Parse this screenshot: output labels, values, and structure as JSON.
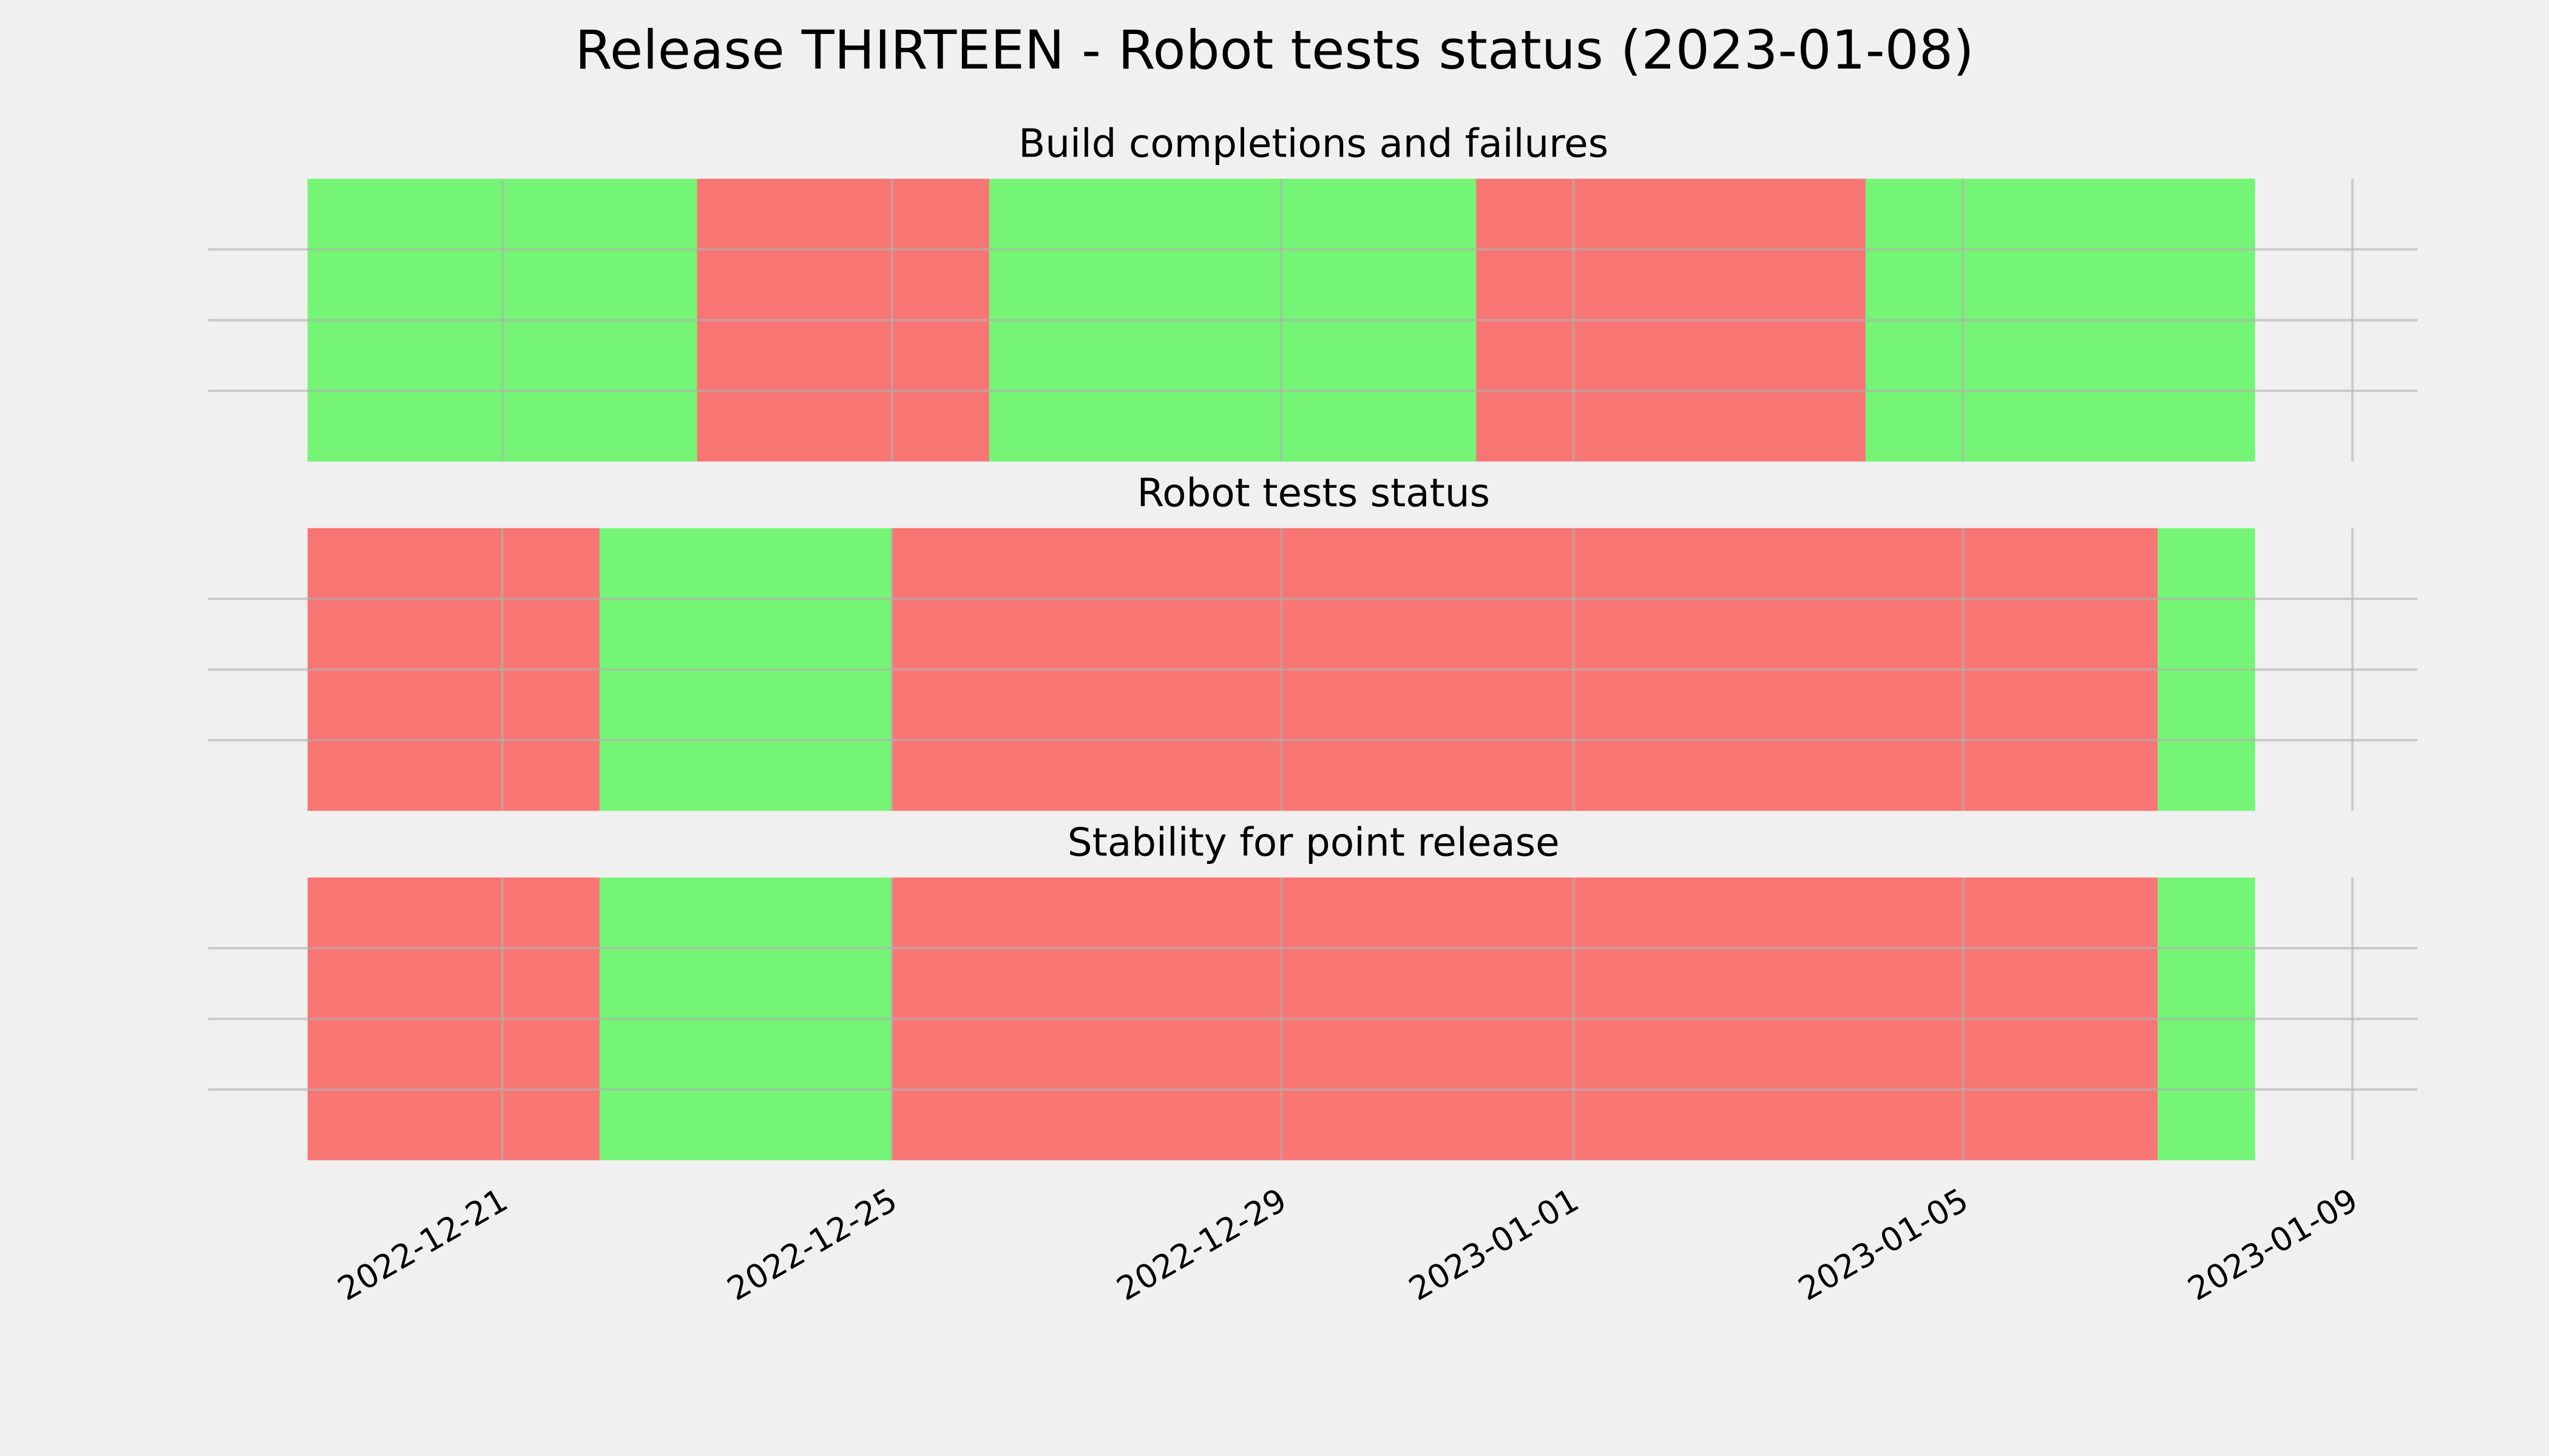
{
  "title": "Release THIRTEEN - Robot tests status (2023-01-08)",
  "chart_data": [
    {
      "type": "timeline",
      "title": "Build completions and failures",
      "x": [
        "2022-12-19",
        "2022-12-23",
        "2022-12-26",
        "2022-12-31",
        "2023-01-04",
        "2023-01-08"
      ],
      "colors": [
        "#75f575",
        "#f77674",
        "#75f575",
        "#f77674",
        "#75f575"
      ],
      "xlim": [
        "2022-12-18",
        "2023-01-10"
      ],
      "xticks": [
        "2022-12-21",
        "2022-12-25",
        "2022-12-29",
        "2023-01-01",
        "2023-01-05",
        "2023-01-09"
      ],
      "ylim": [
        0,
        1
      ],
      "yticks": [
        0.25,
        0.5,
        0.75
      ],
      "grid": true
    },
    {
      "type": "timeline",
      "title": "Robot tests status",
      "x": [
        "2022-12-19",
        "2022-12-22",
        "2022-12-25",
        "2023-01-07",
        "2023-01-08"
      ],
      "colors": [
        "#f77674",
        "#75f575",
        "#f77674",
        "#75f575"
      ],
      "xlim": [
        "2022-12-18",
        "2023-01-10"
      ],
      "xticks": [
        "2022-12-21",
        "2022-12-25",
        "2022-12-29",
        "2023-01-01",
        "2023-01-05",
        "2023-01-09"
      ],
      "ylim": [
        0,
        1
      ],
      "yticks": [
        0.25,
        0.5,
        0.75
      ],
      "grid": true
    },
    {
      "type": "timeline",
      "title": "Stability for point release",
      "x": [
        "2022-12-19",
        "2022-12-22",
        "2022-12-25",
        "2023-01-07",
        "2023-01-08"
      ],
      "colors": [
        "#f77674",
        "#75f575",
        "#f77674",
        "#75f575"
      ],
      "xlim": [
        "2022-12-18",
        "2023-01-10"
      ],
      "xticks": [
        "2022-12-21",
        "2022-12-25",
        "2022-12-29",
        "2023-01-01",
        "2023-01-05",
        "2023-01-09"
      ],
      "ylim": [
        0,
        1
      ],
      "yticks": [
        0.25,
        0.5,
        0.75
      ],
      "grid": true,
      "show_xtick_labels": true
    }
  ]
}
